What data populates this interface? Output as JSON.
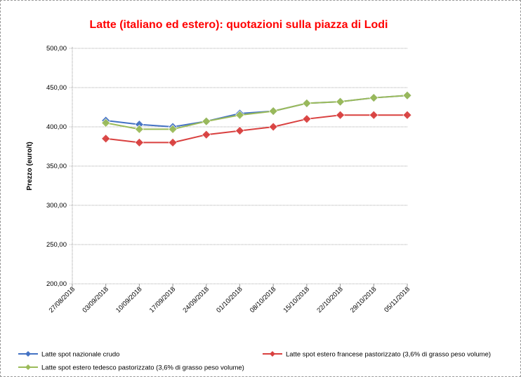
{
  "chart_data": {
    "type": "line",
    "title": "Latte (italiano ed estero): quotazioni sulla piazza di Lodi",
    "xlabel": "",
    "ylabel": "Prezzo (euro/t)",
    "ylim": [
      200,
      500
    ],
    "yticks": [
      "200,00",
      "250,00",
      "300,00",
      "350,00",
      "400,00",
      "450,00",
      "500,00"
    ],
    "ytick_values": [
      200,
      250,
      300,
      350,
      400,
      450,
      500
    ],
    "categories": [
      "27/08/2018",
      "03/09/2018",
      "10/09/2018",
      "17/09/2018",
      "24/09/2018",
      "01/10/2018",
      "08/10/2018",
      "15/10/2018",
      "22/10/2018",
      "29/10/2018",
      "05/11/2018"
    ],
    "grid": true,
    "legend_position": "bottom",
    "series": [
      {
        "name": "Latte spot nazionale crudo",
        "color": "#4472C4",
        "values": [
          null,
          408,
          403,
          400,
          407,
          417,
          420,
          430,
          432,
          437,
          440
        ]
      },
      {
        "name": "Latte spot estero francese pastorizzato (3,6% di grasso peso volume)",
        "color": "#D9403F",
        "values": [
          null,
          385,
          380,
          380,
          390,
          395,
          400,
          410,
          415,
          415,
          415
        ]
      },
      {
        "name": "Latte spot estero tedesco pastorizzato (3,6% di grasso peso volume)",
        "color": "#9BBB59",
        "values": [
          null,
          405,
          397,
          397,
          407,
          415,
          420,
          430,
          432,
          437,
          440
        ]
      }
    ]
  }
}
